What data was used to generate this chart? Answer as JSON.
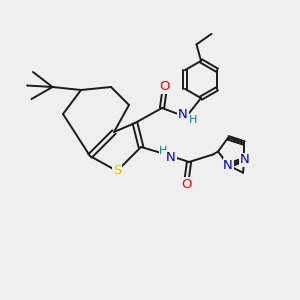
{
  "bg_color": "#efefef",
  "bond_color": "#1a1a1a",
  "bond_width": 1.4,
  "atom_colors": {
    "S": "#cccc00",
    "O": "#ff0000",
    "N": "#0000bb",
    "H": "#008888",
    "C": "#1a1a1a"
  },
  "font_size": 8.5
}
